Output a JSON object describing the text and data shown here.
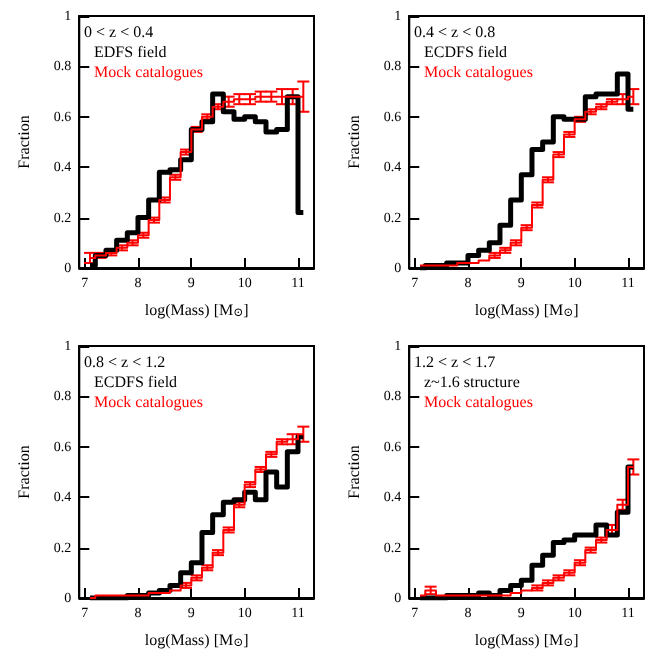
{
  "chart_data": [
    {
      "type": "step",
      "annotations": [
        "0 < z < 0.4"
      ],
      "xlabel": "log(Mass) [M$_{⊙}$]",
      "ylabel": "Fraction",
      "legend": "top left",
      "x": [
        7.1,
        7.3,
        7.5,
        7.7,
        7.9,
        8.1,
        8.3,
        8.5,
        8.7,
        8.9,
        9.1,
        9.3,
        9.5,
        9.7,
        9.9,
        10.1,
        10.3,
        10.5,
        10.7,
        10.9,
        11.1
      ],
      "xlim": [
        6.9,
        11.3
      ],
      "xticks": [
        7,
        8,
        9,
        10,
        11
      ],
      "ylim": [
        0,
        1
      ],
      "yticks": [
        0,
        0.2,
        0.4,
        0.6,
        0.8,
        1
      ],
      "series": [
        {
          "name": "EDFS field",
          "color": "#000000",
          "values": [
            0.01,
            0.05,
            0.07,
            0.11,
            0.14,
            0.2,
            0.27,
            0.38,
            0.39,
            0.43,
            0.55,
            0.58,
            0.69,
            0.62,
            0.59,
            0.6,
            0.58,
            0.54,
            0.55,
            0.68,
            0.22
          ]
        },
        {
          "name": "Mock catalogues",
          "color": "#ff0000",
          "values": [
            0.04,
            0.05,
            0.06,
            0.08,
            0.1,
            0.13,
            0.19,
            0.27,
            0.36,
            0.46,
            0.55,
            0.6,
            0.64,
            0.66,
            0.67,
            0.67,
            0.68,
            0.68,
            0.68,
            0.68,
            0.68
          ],
          "errors": [
            0.02,
            0.01,
            0.01,
            0.01,
            0.01,
            0.01,
            0.01,
            0.01,
            0.01,
            0.01,
            0.01,
            0.01,
            0.01,
            0.02,
            0.02,
            0.02,
            0.02,
            0.02,
            0.03,
            0.03,
            0.06
          ]
        }
      ]
    },
    {
      "type": "step",
      "annotations": [
        "0.4 < z < 0.8"
      ],
      "xlabel": "log(Mass) [M$_{⊙}$]",
      "ylabel": "Fraction",
      "legend": "top left",
      "x": [
        7.1,
        7.3,
        7.5,
        7.7,
        7.9,
        8.1,
        8.3,
        8.5,
        8.7,
        8.9,
        9.1,
        9.3,
        9.5,
        9.7,
        9.9,
        10.1,
        10.3,
        10.5,
        10.7,
        10.9,
        11.1
      ],
      "xlim": [
        6.9,
        11.3
      ],
      "xticks": [
        7,
        8,
        9,
        10,
        11
      ],
      "ylim": [
        0,
        1
      ],
      "yticks": [
        0,
        0.2,
        0.4,
        0.6,
        0.8,
        1
      ],
      "series": [
        {
          "name": "ECDFS field",
          "color": "#000000",
          "values": [
            0,
            0.01,
            0.01,
            0.02,
            0.02,
            0.05,
            0.07,
            0.1,
            0.17,
            0.27,
            0.37,
            0.47,
            0.5,
            0.6,
            0.59,
            0.59,
            0.68,
            0.69,
            0.69,
            0.77,
            0.63
          ]
        },
        {
          "name": "Mock catalogues",
          "color": "#ff0000",
          "values": [
            0.01,
            0.01,
            0.01,
            0.01,
            0.02,
            0.02,
            0.03,
            0.05,
            0.07,
            0.1,
            0.16,
            0.25,
            0.35,
            0.45,
            0.53,
            0.59,
            0.62,
            0.64,
            0.66,
            0.67,
            0.68
          ],
          "errors": [
            null,
            null,
            null,
            null,
            null,
            null,
            null,
            0.01,
            0.01,
            0.01,
            0.01,
            0.01,
            0.01,
            0.01,
            0.01,
            0.01,
            0.01,
            0.01,
            0.01,
            0.02,
            0.03
          ]
        }
      ]
    },
    {
      "type": "step",
      "annotations": [
        "0.8 < z < 1.2"
      ],
      "xlabel": "log(Mass) [M$_{⊙}$]",
      "ylabel": "Fraction",
      "legend": "top left",
      "x": [
        7.1,
        7.3,
        7.5,
        7.7,
        7.9,
        8.1,
        8.3,
        8.5,
        8.7,
        8.9,
        9.1,
        9.3,
        9.5,
        9.7,
        9.9,
        10.1,
        10.3,
        10.5,
        10.7,
        10.9,
        11.1
      ],
      "xlim": [
        6.9,
        11.3
      ],
      "xticks": [
        7,
        8,
        9,
        10,
        11
      ],
      "ylim": [
        0,
        1
      ],
      "yticks": [
        0,
        0.2,
        0.4,
        0.6,
        0.8,
        1
      ],
      "series": [
        {
          "name": "ECDFS field",
          "color": "#000000",
          "values": [
            0,
            0,
            0,
            0,
            0.01,
            0.01,
            0.02,
            0.03,
            0.05,
            0.1,
            0.14,
            0.26,
            0.33,
            0.38,
            0.39,
            0.42,
            0.39,
            0.5,
            0.44,
            0.58,
            0.64
          ]
        },
        {
          "name": "Mock catalogues",
          "color": "#ff0000",
          "values": [
            0,
            0.01,
            0.01,
            0.01,
            0.01,
            0.01,
            0.02,
            0.02,
            0.03,
            0.05,
            0.08,
            0.12,
            0.18,
            0.27,
            0.37,
            0.45,
            0.51,
            0.57,
            0.62,
            0.63,
            0.65
          ],
          "errors": [
            null,
            null,
            null,
            null,
            null,
            null,
            null,
            null,
            null,
            0.01,
            0.01,
            0.01,
            0.01,
            0.01,
            0.01,
            0.01,
            0.01,
            0.01,
            0.01,
            0.02,
            0.03
          ]
        }
      ]
    },
    {
      "type": "step",
      "annotations": [
        "1.2 < z < 1.7"
      ],
      "xlabel": "log(Mass) [M$_{⊙}$]",
      "ylabel": "Fraction",
      "legend": "top left",
      "x": [
        7.1,
        7.3,
        7.5,
        7.7,
        7.9,
        8.1,
        8.3,
        8.5,
        8.7,
        8.9,
        9.1,
        9.3,
        9.5,
        9.7,
        9.9,
        10.1,
        10.3,
        10.5,
        10.7,
        10.9,
        11.1
      ],
      "xlim": [
        6.9,
        11.3
      ],
      "xticks": [
        7,
        8,
        9,
        10,
        11
      ],
      "ylim": [
        0,
        1
      ],
      "yticks": [
        0,
        0.2,
        0.4,
        0.6,
        0.8,
        1
      ],
      "series": [
        {
          "name": "z~1.6 structure",
          "color": "#000000",
          "values": [
            0,
            0,
            0,
            0.01,
            0.01,
            0.01,
            0.02,
            0.01,
            0.03,
            0.05,
            0.07,
            0.13,
            0.17,
            0.22,
            0.23,
            0.25,
            0.25,
            0.29,
            0.25,
            0.34,
            0.52
          ]
        },
        {
          "name": "Mock catalogues",
          "color": "#ff0000",
          "values": [
            0.01,
            0.03,
            0.01,
            0.01,
            0.01,
            0.01,
            0.01,
            0.01,
            0.01,
            0.02,
            0.03,
            0.04,
            0.06,
            0.08,
            0.1,
            0.14,
            0.19,
            0.23,
            0.27,
            0.37,
            0.52
          ],
          "errors": [
            null,
            0.015,
            null,
            null,
            null,
            null,
            null,
            null,
            null,
            null,
            null,
            0.01,
            0.01,
            0.01,
            0.01,
            0.01,
            0.01,
            0.01,
            0.02,
            0.02,
            0.03
          ]
        }
      ]
    }
  ]
}
